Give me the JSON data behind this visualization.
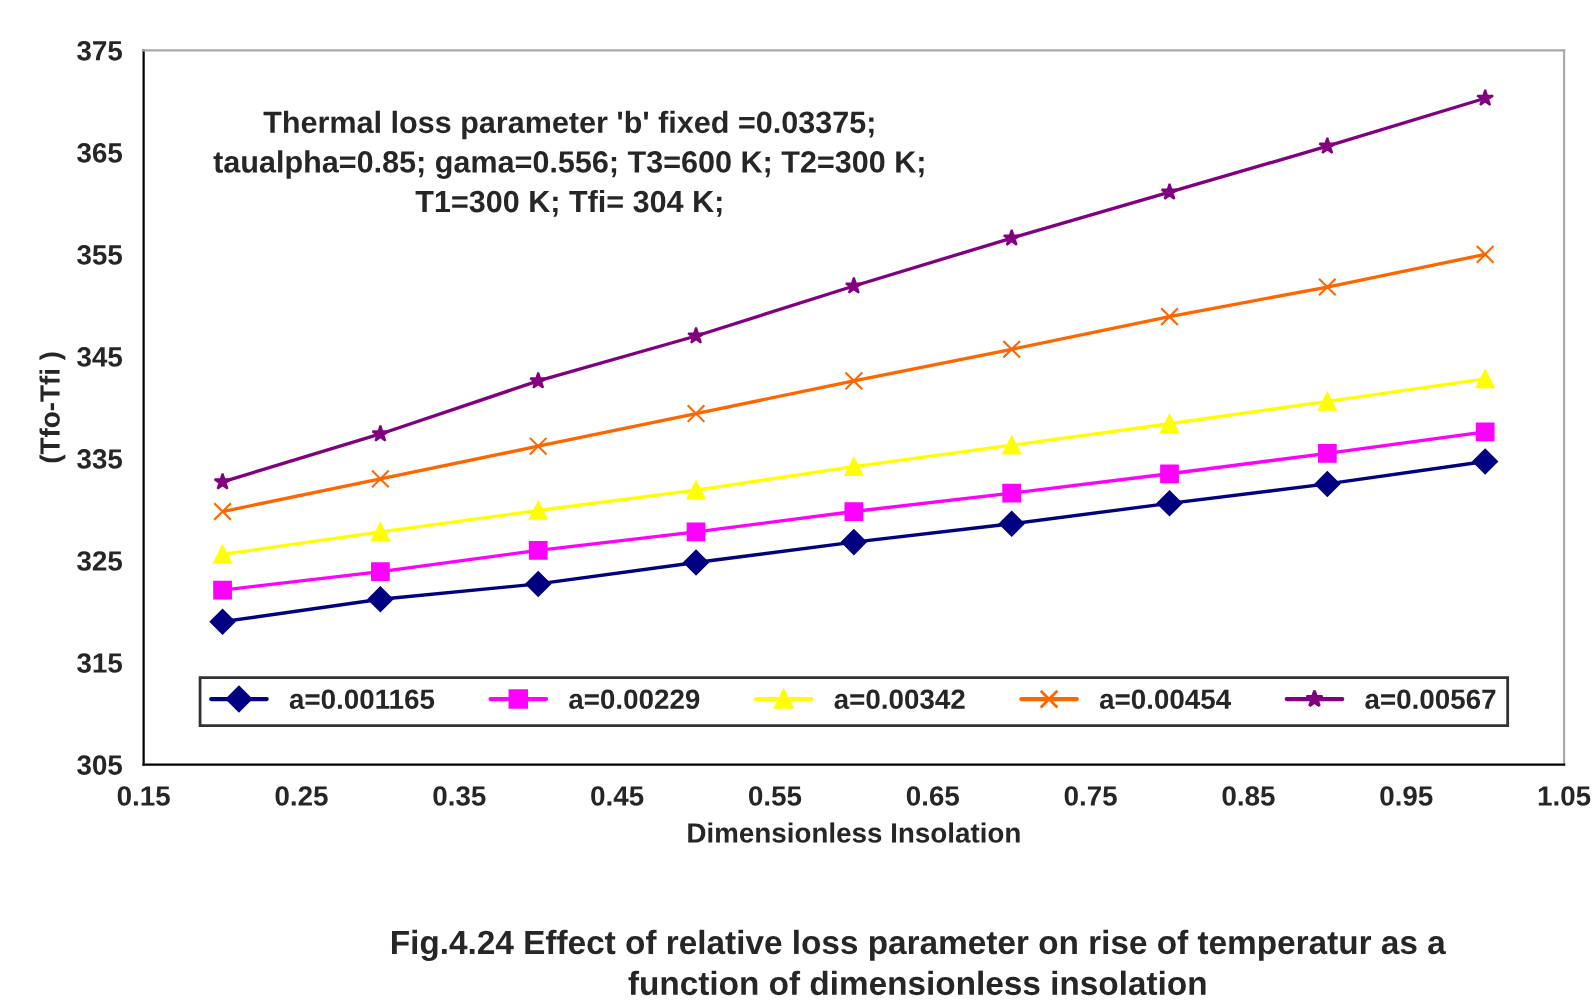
{
  "chart_data": {
    "type": "line",
    "xlabel": "Dimensionless Insolation",
    "ylabel": "(Tfo-Tfi )",
    "annotations": [
      "Thermal loss parameter 'b' fixed =0.03375;\ntaualpha=0.85; gama=0.556; T3=600 K; T2=300 K;\nT1=300 K; Tfi= 304 K;",
      "Fig.4.24 Effect of relative loss parameter on rise of temperatur as a\nfunction of dimensionless insolation"
    ],
    "x": [
      0.2,
      0.3,
      0.4,
      0.5,
      0.6,
      0.7,
      0.8,
      0.9,
      1.0
    ],
    "series": [
      {
        "name": "a=0.001165",
        "color": "#000080",
        "marker": "diamond",
        "values": [
          319.0,
          321.2,
          322.7,
          324.8,
          326.8,
          328.6,
          330.6,
          332.5,
          334.7
        ]
      },
      {
        "name": "a=0.00229",
        "color": "#ff00ff",
        "marker": "square",
        "values": [
          322.1,
          323.9,
          326.0,
          327.8,
          329.8,
          331.6,
          333.5,
          335.5,
          337.6
        ]
      },
      {
        "name": "a=0.00342",
        "color": "#ffff00",
        "marker": "triangle",
        "values": [
          325.6,
          327.8,
          329.9,
          331.9,
          334.2,
          336.3,
          338.4,
          340.6,
          342.8
        ]
      },
      {
        "name": "a=0.00454",
        "color": "#ff6600",
        "marker": "cross",
        "values": [
          329.8,
          333.0,
          336.2,
          339.4,
          342.6,
          345.7,
          348.9,
          351.8,
          355.0
        ]
      },
      {
        "name": "a=0.00567",
        "color": "#800080",
        "marker": "star",
        "values": [
          332.7,
          337.4,
          342.6,
          347.0,
          351.9,
          356.6,
          361.1,
          365.6,
          370.3
        ]
      }
    ],
    "xlim": [
      0.15,
      1.05
    ],
    "xticks": [
      0.15,
      0.25,
      0.35,
      0.45,
      0.55,
      0.65,
      0.75,
      0.85,
      0.95,
      1.05
    ],
    "ylim": [
      305,
      375
    ],
    "yticks": [
      305,
      315,
      325,
      335,
      345,
      355,
      365,
      375
    ],
    "legend": "bottom",
    "grid": false
  }
}
